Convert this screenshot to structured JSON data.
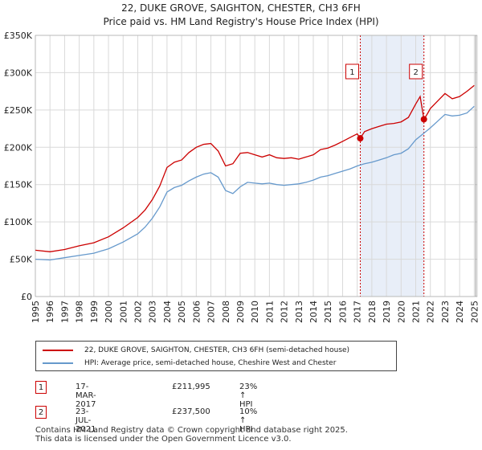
{
  "chart_data": {
    "type": "line",
    "title": "22, DUKE GROVE, SAIGHTON, CHESTER, CH3 6FH",
    "subtitle": "Price paid vs. HM Land Registry's House Price Index (HPI)",
    "xlabel": "",
    "ylabel": "",
    "xlim": [
      1995.0,
      2025.2
    ],
    "ylim": [
      0,
      350000
    ],
    "x_ticks": [
      "1995",
      "1996",
      "1997",
      "1998",
      "1999",
      "2000",
      "2001",
      "2002",
      "2003",
      "2004",
      "2005",
      "2006",
      "2007",
      "2008",
      "2009",
      "2010",
      "2011",
      "2012",
      "2013",
      "2014",
      "2015",
      "2016",
      "2017",
      "2018",
      "2019",
      "2020",
      "2021",
      "2022",
      "2023",
      "2024",
      "2025"
    ],
    "y_ticks": [
      {
        "value": 0,
        "label": "£0"
      },
      {
        "value": 50000,
        "label": "£50K"
      },
      {
        "value": 100000,
        "label": "£100K"
      },
      {
        "value": 150000,
        "label": "£150K"
      },
      {
        "value": 200000,
        "label": "£200K"
      },
      {
        "value": 250000,
        "label": "£250K"
      },
      {
        "value": 300000,
        "label": "£300K"
      },
      {
        "value": 350000,
        "label": "£350K"
      }
    ],
    "grid": true,
    "shaded_region": {
      "x_start": 2017.21,
      "x_end": 2021.56
    },
    "series": [
      {
        "name": "22, DUKE GROVE, SAIGHTON, CHESTER, CH3 6FH (semi-detached house)",
        "color": "#cc0000",
        "x": [
          1995.0,
          1996.0,
          1997.0,
          1998.0,
          1999.0,
          2000.0,
          2001.0,
          2002.0,
          2002.5,
          2003.0,
          2003.5,
          2004.0,
          2004.5,
          2005.0,
          2005.5,
          2006.0,
          2006.5,
          2007.0,
          2007.5,
          2008.0,
          2008.5,
          2009.0,
          2009.5,
          2010.0,
          2010.5,
          2011.0,
          2011.5,
          2012.0,
          2012.5,
          2013.0,
          2013.5,
          2014.0,
          2014.5,
          2015.0,
          2015.5,
          2016.0,
          2016.5,
          2017.0,
          2017.21,
          2017.5,
          2018.0,
          2018.5,
          2019.0,
          2019.5,
          2020.0,
          2020.5,
          2021.0,
          2021.3,
          2021.56,
          2021.8,
          2022.0,
          2022.5,
          2023.0,
          2023.5,
          2024.0,
          2024.5,
          2025.0
        ],
        "y": [
          62000,
          60000,
          63000,
          68000,
          72000,
          80000,
          92000,
          106000,
          116000,
          130000,
          148000,
          173000,
          180000,
          183000,
          193000,
          200000,
          204000,
          205000,
          195000,
          175000,
          178000,
          192000,
          193000,
          190000,
          187000,
          190000,
          186000,
          185000,
          186000,
          184000,
          187000,
          190000,
          197000,
          199000,
          203000,
          208000,
          213000,
          218000,
          211995,
          221000,
          225000,
          228000,
          231000,
          232000,
          234000,
          240000,
          258000,
          268000,
          237500,
          245000,
          252000,
          262000,
          272000,
          265000,
          268000,
          275000,
          283000
        ]
      },
      {
        "name": "HPI: Average price, semi-detached house, Cheshire West and Chester",
        "color": "#6699cc",
        "x": [
          1995.0,
          1996.0,
          1997.0,
          1998.0,
          1999.0,
          2000.0,
          2001.0,
          2002.0,
          2002.5,
          2003.0,
          2003.5,
          2004.0,
          2004.5,
          2005.0,
          2005.5,
          2006.0,
          2006.5,
          2007.0,
          2007.5,
          2008.0,
          2008.5,
          2009.0,
          2009.5,
          2010.0,
          2010.5,
          2011.0,
          2011.5,
          2012.0,
          2012.5,
          2013.0,
          2013.5,
          2014.0,
          2014.5,
          2015.0,
          2015.5,
          2016.0,
          2016.5,
          2017.0,
          2017.5,
          2018.0,
          2018.5,
          2019.0,
          2019.5,
          2020.0,
          2020.5,
          2021.0,
          2021.5,
          2022.0,
          2022.5,
          2023.0,
          2023.5,
          2024.0,
          2024.5,
          2025.0
        ],
        "y": [
          50000,
          49000,
          52000,
          55000,
          58000,
          64000,
          73000,
          84000,
          93000,
          105000,
          120000,
          140000,
          146000,
          149000,
          155000,
          160000,
          164000,
          166000,
          160000,
          142000,
          138000,
          147000,
          153000,
          152000,
          151000,
          152000,
          150000,
          149000,
          150000,
          151000,
          153000,
          156000,
          160000,
          162000,
          165000,
          168000,
          171000,
          175000,
          178000,
          180000,
          183000,
          186000,
          190000,
          192000,
          198000,
          210000,
          218000,
          226000,
          235000,
          244000,
          242000,
          243000,
          246000,
          255000
        ]
      }
    ],
    "sales": [
      {
        "id": "1",
        "x": 2017.21,
        "y": 211995
      },
      {
        "id": "2",
        "x": 2021.56,
        "y": 237500
      }
    ]
  },
  "legend": {
    "property_label": "22, DUKE GROVE, SAIGHTON, CHESTER, CH3 6FH (semi-detached house)",
    "hpi_label": "HPI: Average price, semi-detached house, Cheshire West and Chester"
  },
  "annotations": [
    {
      "id": "1",
      "date": "17-MAR-2017",
      "price": "£211,995",
      "hpi": "23% ↑ HPI"
    },
    {
      "id": "2",
      "date": "23-JUL-2021",
      "price": "£237,500",
      "hpi": "10% ↑ HPI"
    }
  ],
  "footer": {
    "line1": "Contains HM Land Registry data © Crown copyright and database right 2025.",
    "line2": "This data is licensed under the Open Government Licence v3.0."
  },
  "colors": {
    "property": "#cc0000",
    "hpi": "#6699cc",
    "shade": "#e8eef8",
    "marker_line": "#cc0000"
  }
}
